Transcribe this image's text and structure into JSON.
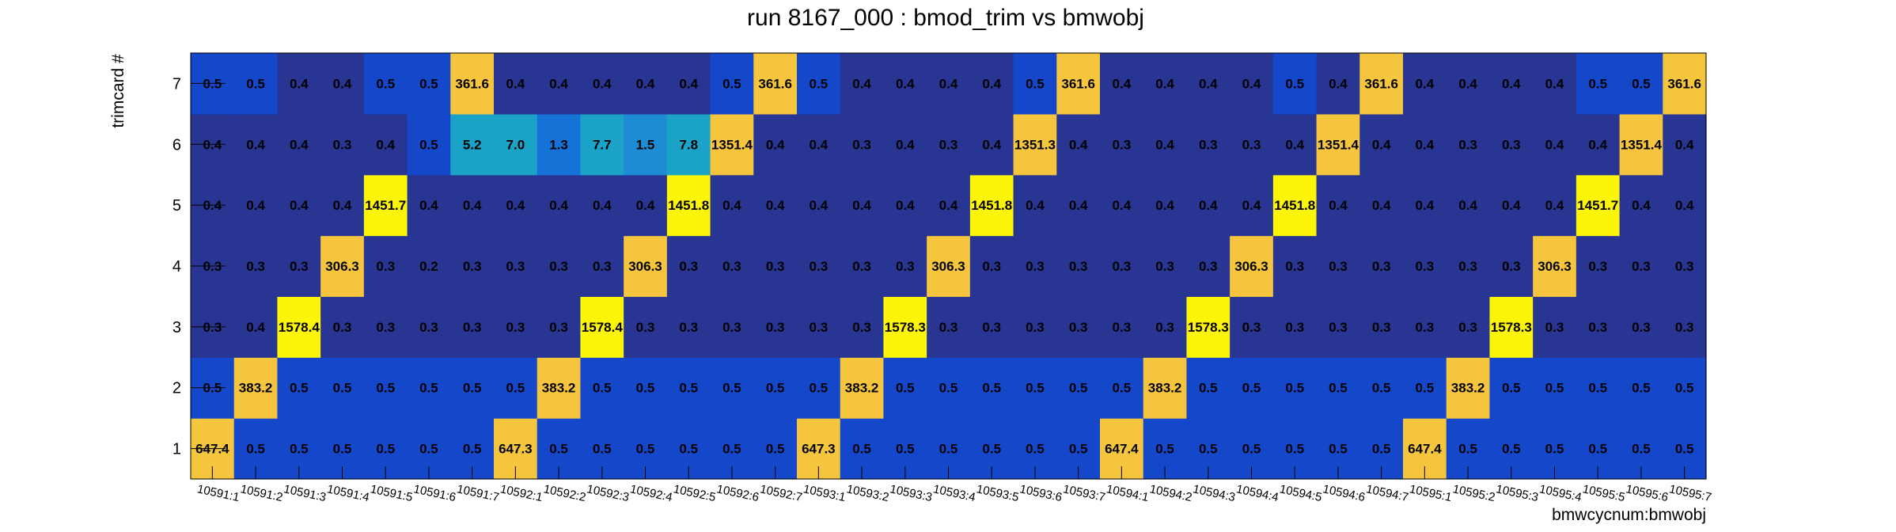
{
  "chart_data": {
    "type": "heatmap",
    "title": "run 8167_000 : bmod_trim vs bmwobj",
    "xlabel": "bmwcycnum:bmwobj",
    "ylabel": "trimcard #",
    "x_categories": [
      "10591:1",
      "10591:2",
      "10591:3",
      "10591:4",
      "10591:5",
      "10591:6",
      "10591:7",
      "10592:1",
      "10592:2",
      "10592:3",
      "10592:4",
      "10592:5",
      "10592:6",
      "10592:7",
      "10593:1",
      "10593:2",
      "10593:3",
      "10593:4",
      "10593:5",
      "10593:6",
      "10593:7",
      "10594:1",
      "10594:2",
      "10594:3",
      "10594:4",
      "10594:5",
      "10594:6",
      "10594:7",
      "10595:1",
      "10595:2",
      "10595:3",
      "10595:4",
      "10595:5",
      "10595:6",
      "10595:7"
    ],
    "y_categories": [
      "1",
      "2",
      "3",
      "4",
      "5",
      "6",
      "7"
    ],
    "grid": false,
    "legend": "none",
    "values": [
      [
        647.4,
        0.5,
        0.5,
        0.5,
        0.5,
        0.5,
        0.5,
        647.3,
        0.5,
        0.5,
        0.5,
        0.5,
        0.5,
        0.5,
        647.3,
        0.5,
        0.5,
        0.5,
        0.5,
        0.5,
        0.5,
        647.4,
        0.5,
        0.5,
        0.5,
        0.5,
        0.5,
        0.5,
        647.4,
        0.5,
        0.5,
        0.5,
        0.5,
        0.5,
        0.5
      ],
      [
        0.5,
        383.2,
        0.5,
        0.5,
        0.5,
        0.5,
        0.5,
        0.5,
        383.2,
        0.5,
        0.5,
        0.5,
        0.5,
        0.5,
        0.5,
        383.2,
        0.5,
        0.5,
        0.5,
        0.5,
        0.5,
        0.5,
        383.2,
        0.5,
        0.5,
        0.5,
        0.5,
        0.5,
        0.5,
        383.2,
        0.5,
        0.5,
        0.5,
        0.5,
        0.5
      ],
      [
        0.3,
        0.4,
        1578.4,
        0.3,
        0.3,
        0.3,
        0.3,
        0.3,
        0.3,
        1578.4,
        0.3,
        0.3,
        0.3,
        0.3,
        0.3,
        0.3,
        1578.3,
        0.3,
        0.3,
        0.3,
        0.3,
        0.3,
        0.3,
        1578.3,
        0.3,
        0.3,
        0.3,
        0.3,
        0.3,
        0.3,
        1578.3,
        0.3,
        0.3,
        0.3,
        0.3
      ],
      [
        0.3,
        0.3,
        0.3,
        306.3,
        0.3,
        0.2,
        0.3,
        0.3,
        0.3,
        0.3,
        306.3,
        0.3,
        0.3,
        0.3,
        0.3,
        0.3,
        0.3,
        306.3,
        0.3,
        0.3,
        0.3,
        0.3,
        0.3,
        0.3,
        306.3,
        0.3,
        0.3,
        0.3,
        0.3,
        0.3,
        0.3,
        306.3,
        0.3,
        0.3,
        0.3
      ],
      [
        0.4,
        0.4,
        0.4,
        0.4,
        1451.7,
        0.4,
        0.4,
        0.4,
        0.4,
        0.4,
        0.4,
        1451.8,
        0.4,
        0.4,
        0.4,
        0.4,
        0.4,
        0.4,
        1451.8,
        0.4,
        0.4,
        0.4,
        0.4,
        0.4,
        0.4,
        1451.8,
        0.4,
        0.4,
        0.4,
        0.4,
        0.4,
        0.4,
        1451.7,
        0.4,
        0.4
      ],
      [
        0.4,
        0.4,
        0.4,
        0.3,
        0.4,
        0.5,
        5.2,
        7.0,
        1.3,
        7.7,
        1.5,
        7.8,
        1351.4,
        0.4,
        0.4,
        0.3,
        0.4,
        0.3,
        0.4,
        1351.3,
        0.4,
        0.3,
        0.4,
        0.3,
        0.3,
        0.4,
        1351.4,
        0.4,
        0.4,
        0.3,
        0.3,
        0.4,
        0.4,
        1351.4,
        0.4
      ],
      [
        0.5,
        0.5,
        0.4,
        0.4,
        0.5,
        0.5,
        361.6,
        0.4,
        0.4,
        0.4,
        0.4,
        0.4,
        0.5,
        361.6,
        0.5,
        0.4,
        0.4,
        0.4,
        0.4,
        0.5,
        361.6,
        0.4,
        0.4,
        0.4,
        0.4,
        0.5,
        0.4,
        361.6,
        0.4,
        0.4,
        0.4,
        0.4,
        0.5,
        0.5,
        361.6
      ]
    ],
    "colors": {
      "dark": "#283593",
      "medium": "#1447c9",
      "light_medium": "#1573d7",
      "mid_teal": "#1e8cd4",
      "teal": "#1aa3c6",
      "orange": "#f5c53e",
      "yellow": "#fcf50a"
    }
  }
}
